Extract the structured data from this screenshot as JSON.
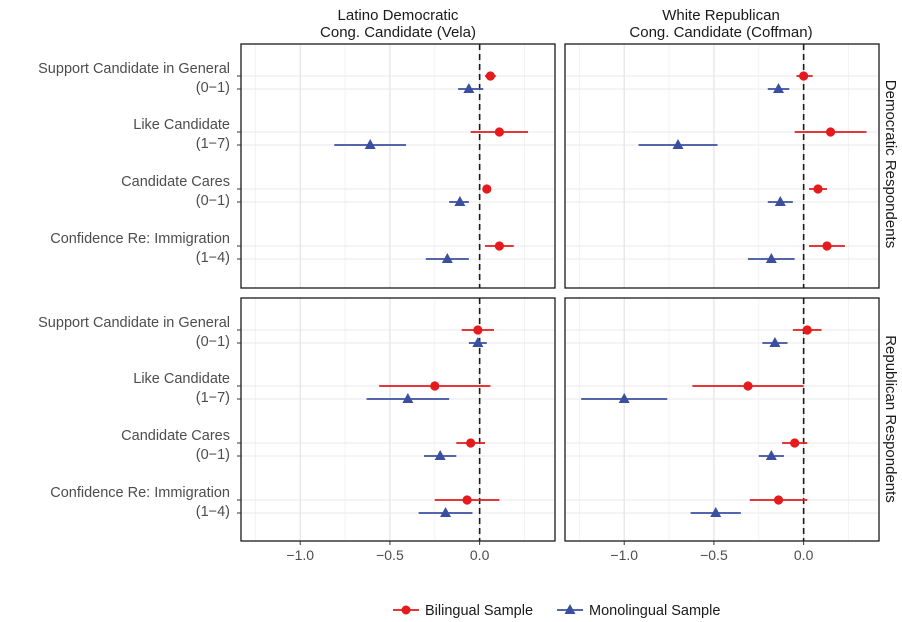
{
  "chart_data": {
    "type": "dot-whisker",
    "x_ticks": [
      -1.0,
      -0.5,
      0.0
    ],
    "x_tick_labels": [
      "−1.0",
      "−0.5",
      "0.0"
    ],
    "panels": [
      {
        "title_line1": "Latino Democratic",
        "title_line2": "Cong. Candidate (Vela)",
        "xlim": [
          -1.33,
          0.42
        ]
      },
      {
        "title_line1": "White Republican",
        "title_line2": "Cong. Candidate (Coffman)",
        "xlim": [
          -1.33,
          0.42
        ]
      }
    ],
    "rows": [
      {
        "label": "Democratic Respondents"
      },
      {
        "label": "Republican Respondents"
      }
    ],
    "categories": [
      {
        "line1": "Support Candidate in General",
        "line2": "(0−1)"
      },
      {
        "line1": "Like Candidate",
        "line2": "(1−7)"
      },
      {
        "line1": "Candidate Cares",
        "line2": "(0−1)"
      },
      {
        "line1": "Confidence Re: Immigration",
        "line2": "(1−4)"
      }
    ],
    "series": [
      {
        "name": "Bilingual Sample",
        "color": "#e41a1c",
        "shape": "circle"
      },
      {
        "name": "Monolingual Sample",
        "color": "#3b4fa0",
        "shape": "triangle"
      }
    ],
    "estimates": [
      {
        "row": 0,
        "panel": 0,
        "bilingual": [
          {
            "est": 0.06,
            "lo": 0.03,
            "hi": 0.09
          },
          {
            "est": 0.11,
            "lo": -0.05,
            "hi": 0.27
          },
          {
            "est": 0.04,
            "lo": 0.02,
            "hi": 0.06
          },
          {
            "est": 0.11,
            "lo": 0.03,
            "hi": 0.19
          }
        ],
        "monolingual": [
          {
            "est": -0.06,
            "lo": -0.12,
            "hi": 0.02
          },
          {
            "est": -0.61,
            "lo": -0.81,
            "hi": -0.41
          },
          {
            "est": -0.11,
            "lo": -0.17,
            "hi": -0.06
          },
          {
            "est": -0.18,
            "lo": -0.3,
            "hi": -0.06
          }
        ]
      },
      {
        "row": 0,
        "panel": 1,
        "bilingual": [
          {
            "est": 0.0,
            "lo": -0.04,
            "hi": 0.05
          },
          {
            "est": 0.15,
            "lo": -0.05,
            "hi": 0.35
          },
          {
            "est": 0.08,
            "lo": 0.03,
            "hi": 0.13
          },
          {
            "est": 0.13,
            "lo": 0.03,
            "hi": 0.23
          }
        ],
        "monolingual": [
          {
            "est": -0.14,
            "lo": -0.2,
            "hi": -0.08
          },
          {
            "est": -0.7,
            "lo": -0.92,
            "hi": -0.48
          },
          {
            "est": -0.13,
            "lo": -0.2,
            "hi": -0.06
          },
          {
            "est": -0.18,
            "lo": -0.31,
            "hi": -0.05
          }
        ]
      },
      {
        "row": 1,
        "panel": 0,
        "bilingual": [
          {
            "est": -0.01,
            "lo": -0.1,
            "hi": 0.08
          },
          {
            "est": -0.25,
            "lo": -0.56,
            "hi": 0.06
          },
          {
            "est": -0.05,
            "lo": -0.13,
            "hi": 0.03
          },
          {
            "est": -0.07,
            "lo": -0.25,
            "hi": 0.11
          }
        ],
        "monolingual": [
          {
            "est": -0.01,
            "lo": -0.06,
            "hi": 0.04
          },
          {
            "est": -0.4,
            "lo": -0.63,
            "hi": -0.17
          },
          {
            "est": -0.22,
            "lo": -0.31,
            "hi": -0.13
          },
          {
            "est": -0.19,
            "lo": -0.34,
            "hi": -0.04
          }
        ]
      },
      {
        "row": 1,
        "panel": 1,
        "bilingual": [
          {
            "est": 0.02,
            "lo": -0.06,
            "hi": 0.1
          },
          {
            "est": -0.31,
            "lo": -0.62,
            "hi": 0.0
          },
          {
            "est": -0.05,
            "lo": -0.12,
            "hi": 0.02
          },
          {
            "est": -0.14,
            "lo": -0.3,
            "hi": 0.02
          }
        ],
        "monolingual": [
          {
            "est": -0.16,
            "lo": -0.23,
            "hi": -0.09
          },
          {
            "est": -1.0,
            "lo": -1.24,
            "hi": -0.76
          },
          {
            "est": -0.18,
            "lo": -0.25,
            "hi": -0.11
          },
          {
            "est": -0.49,
            "lo": -0.63,
            "hi": -0.35
          }
        ]
      }
    ],
    "reference_line": 0,
    "grid": true,
    "legend_position": "bottom"
  }
}
